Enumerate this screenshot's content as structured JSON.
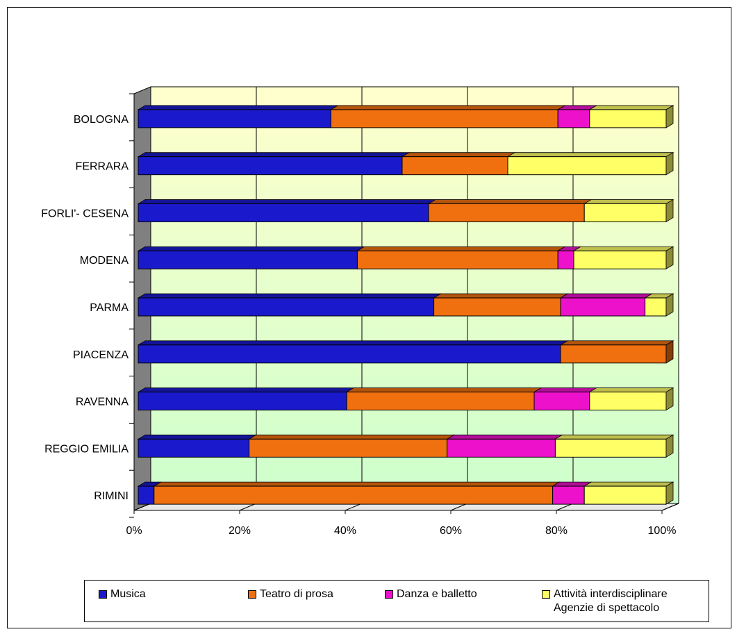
{
  "chart_data": {
    "type": "bar",
    "orientation": "horizontal",
    "stacked": "percent",
    "categories": [
      "BOLOGNA",
      "FERRARA",
      "FORLI'- CESENA",
      "MODENA",
      "PARMA",
      "PIACENZA",
      "RAVENNA",
      "REGGIO EMILIA",
      "RIMINI"
    ],
    "series": [
      {
        "name": "Musica",
        "color": "#1a1acc",
        "values": [
          36.5,
          50,
          55,
          41.5,
          56,
          80,
          39.5,
          21,
          3
        ]
      },
      {
        "name": "Teatro di prosa",
        "color": "#f07010",
        "values": [
          43,
          20,
          29.5,
          38,
          24,
          20,
          35.5,
          37.5,
          75.5
        ]
      },
      {
        "name": "Danza e balletto",
        "color": "#ee11cc",
        "values": [
          6,
          0,
          0,
          3,
          16,
          0,
          10.5,
          20.5,
          6
        ]
      },
      {
        "name": "Attività interdisciplinare Agenzie di spettacolo",
        "color": "#ffff66",
        "values": [
          14.5,
          30,
          15.5,
          17.5,
          4,
          0,
          14.5,
          21,
          15.5
        ]
      }
    ],
    "x_ticks": [
      "0%",
      "20%",
      "40%",
      "60%",
      "80%",
      "100%"
    ],
    "xlim": [
      0,
      100
    ],
    "grid": true,
    "legend_position": "bottom",
    "title": "",
    "xlabel": "",
    "ylabel": ""
  },
  "legend": {
    "items": [
      {
        "lines": [
          "Musica"
        ]
      },
      {
        "lines": [
          "Teatro di prosa"
        ]
      },
      {
        "lines": [
          "Danza e balletto"
        ]
      },
      {
        "lines": [
          "Attività interdisciplinare",
          "Agenzie di spettacolo"
        ]
      }
    ]
  }
}
